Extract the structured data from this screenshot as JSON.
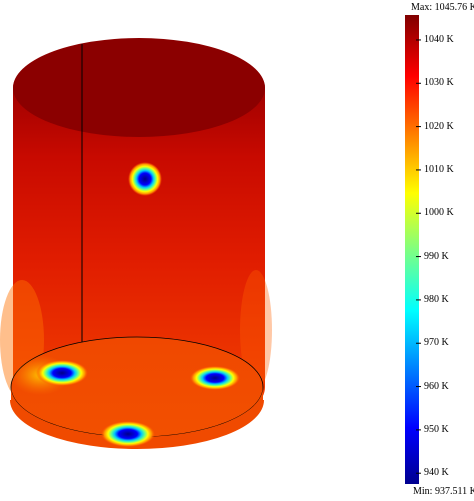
{
  "plot": {
    "max_label": "Max: 1045.76 K",
    "min_label": "Min: 937.511 K",
    "colormap": "jet",
    "range": [
      937.511,
      1045.76
    ],
    "ticks": [
      {
        "value": 1040,
        "label": "1040 K"
      },
      {
        "value": 1030,
        "label": "1030 K"
      },
      {
        "value": 1020,
        "label": "1020 K"
      },
      {
        "value": 1010,
        "label": "1010 K"
      },
      {
        "value": 1000,
        "label": "1000 K"
      },
      {
        "value": 990,
        "label": "990 K"
      },
      {
        "value": 980,
        "label": "980 K"
      },
      {
        "value": 970,
        "label": "970 K"
      },
      {
        "value": 960,
        "label": "960 K"
      },
      {
        "value": 950,
        "label": "950 K"
      },
      {
        "value": 940,
        "label": "940 K"
      }
    ],
    "colors": {
      "dark_red": "#8b0000",
      "red": "#e01400",
      "orange_red": "#f04a00",
      "edge": "#000000"
    }
  }
}
